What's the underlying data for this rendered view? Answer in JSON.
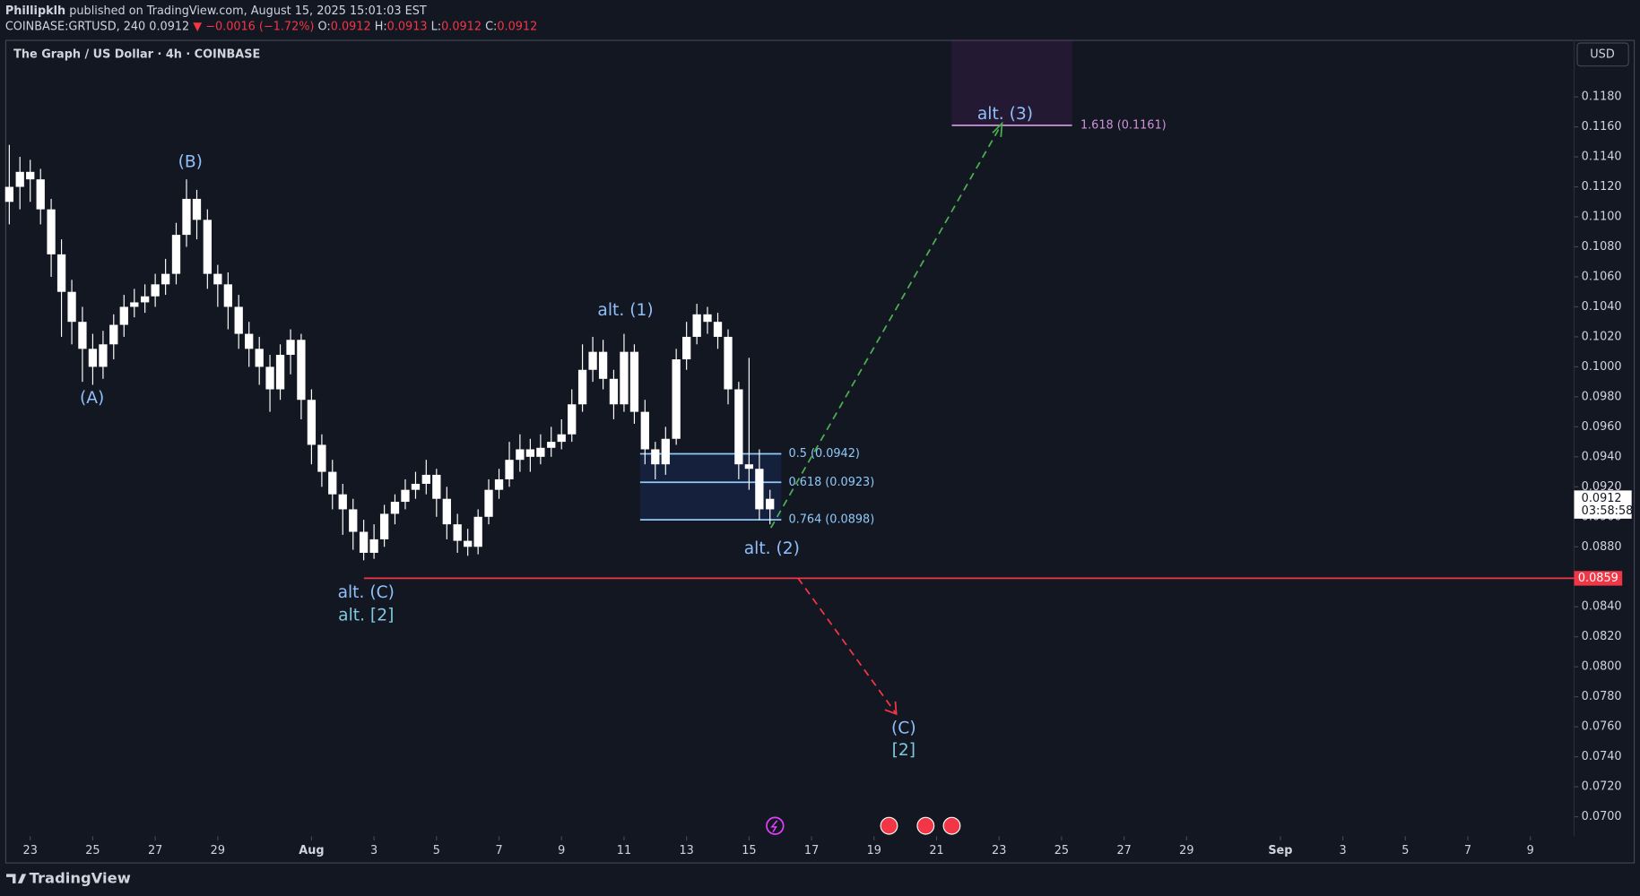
{
  "header": {
    "author": "Phillipklh",
    "published": "published on TradingView.com, August 15, 2025 15:01:03 EST",
    "symbol": "COINBASE:GRTUSD, 240",
    "last": "0.0912",
    "change": "▼ −0.0016 (−1.72%)",
    "ohlc": [
      {
        "key": "O:",
        "value": "0.0912"
      },
      {
        "key": "H:",
        "value": "0.0913"
      },
      {
        "key": "L:",
        "value": "0.0912"
      },
      {
        "key": "C:",
        "value": "0.0912"
      }
    ]
  },
  "chart_data": {
    "type": "candlestick",
    "title": "The Graph / US Dollar · 4h · COINBASE",
    "currency": "USD",
    "color": "#ffffff",
    "x": [
      0.33,
      0.67,
      1,
      1.33,
      1.67,
      2,
      2.33,
      2.67,
      3,
      3.33,
      3.67,
      4,
      4.33,
      4.67,
      5,
      5.33,
      5.67,
      6,
      6.33,
      6.67,
      7,
      7.33,
      7.67,
      8,
      8.33,
      8.67,
      9,
      9.33,
      9.67,
      10,
      10.33,
      10.67,
      11,
      11.33,
      11.67,
      12,
      12.33,
      12.67,
      13,
      13.33,
      13.67,
      14,
      14.33,
      14.67,
      15,
      15.33,
      15.67,
      16,
      16.33,
      16.67,
      17,
      17.33,
      17.67,
      18,
      18.33,
      18.67,
      19,
      19.33,
      19.67,
      20,
      20.33,
      20.67,
      21,
      21.33,
      21.67,
      22,
      22.33,
      22.67,
      23,
      23.33,
      23.67,
      24,
      24.33,
      24.67
    ],
    "open": [
      0.111,
      0.112,
      0.113,
      0.1125,
      0.1105,
      0.1075,
      0.105,
      0.103,
      0.1012,
      0.1,
      0.1015,
      0.1028,
      0.104,
      0.1043,
      0.1047,
      0.1055,
      0.1062,
      0.1088,
      0.1112,
      0.1098,
      0.1062,
      0.1055,
      0.104,
      0.1022,
      0.1012,
      0.1,
      0.0985,
      0.1008,
      0.1018,
      0.0978,
      0.0948,
      0.093,
      0.0915,
      0.0905,
      0.089,
      0.0876,
      0.0885,
      0.0902,
      0.091,
      0.0918,
      0.0922,
      0.0928,
      0.0912,
      0.0895,
      0.0884,
      0.088,
      0.09,
      0.0918,
      0.0925,
      0.0938,
      0.0945,
      0.094,
      0.0946,
      0.095,
      0.0955,
      0.0975,
      0.0998,
      0.101,
      0.0992,
      0.0975,
      0.101,
      0.097,
      0.0945,
      0.0935,
      0.0952,
      0.1005,
      0.102,
      0.1035,
      0.103,
      0.102,
      0.0985,
      0.0935,
      0.0932,
      0.0905
    ],
    "high": [
      0.1148,
      0.114,
      0.1138,
      0.1132,
      0.1112,
      0.1085,
      0.1058,
      0.104,
      0.1022,
      0.1024,
      0.1035,
      0.1048,
      0.1052,
      0.1055,
      0.1062,
      0.1072,
      0.1096,
      0.1125,
      0.1118,
      0.1105,
      0.1068,
      0.1063,
      0.1048,
      0.103,
      0.102,
      0.1008,
      0.1015,
      0.1025,
      0.1022,
      0.0985,
      0.0955,
      0.0938,
      0.0922,
      0.0912,
      0.0898,
      0.0895,
      0.0908,
      0.0915,
      0.0925,
      0.093,
      0.0938,
      0.0932,
      0.092,
      0.0902,
      0.0892,
      0.0905,
      0.0925,
      0.0932,
      0.095,
      0.0955,
      0.0952,
      0.0955,
      0.096,
      0.0965,
      0.0985,
      0.1015,
      0.102,
      0.1018,
      0.0998,
      0.1022,
      0.1015,
      0.0978,
      0.095,
      0.096,
      0.1012,
      0.103,
      0.1042,
      0.104,
      0.1036,
      0.1025,
      0.099,
      0.1006,
      0.0945,
      0.0918
    ],
    "low": [
      0.1095,
      0.1105,
      0.111,
      0.1095,
      0.106,
      0.102,
      0.1015,
      0.099,
      0.0988,
      0.0992,
      0.1005,
      0.102,
      0.1033,
      0.1036,
      0.104,
      0.1048,
      0.1055,
      0.108,
      0.1085,
      0.1052,
      0.104,
      0.1025,
      0.1012,
      0.1,
      0.0988,
      0.097,
      0.0978,
      0.0995,
      0.0965,
      0.0935,
      0.092,
      0.0905,
      0.0888,
      0.0878,
      0.0871,
      0.0872,
      0.088,
      0.0895,
      0.0905,
      0.0912,
      0.0915,
      0.09,
      0.0885,
      0.0876,
      0.0874,
      0.0875,
      0.0895,
      0.0912,
      0.092,
      0.093,
      0.093,
      0.0935,
      0.094,
      0.0945,
      0.095,
      0.097,
      0.099,
      0.0985,
      0.0965,
      0.097,
      0.0962,
      0.0935,
      0.0925,
      0.0928,
      0.0948,
      0.0998,
      0.1015,
      0.1022,
      0.1012,
      0.0975,
      0.0925,
      0.0918,
      0.0898,
      0.0895
    ],
    "close": [
      0.112,
      0.113,
      0.1125,
      0.1105,
      0.1075,
      0.105,
      0.103,
      0.1012,
      0.1,
      0.1015,
      0.1028,
      0.104,
      0.1043,
      0.1047,
      0.1055,
      0.1062,
      0.1088,
      0.1112,
      0.1098,
      0.1062,
      0.1055,
      0.104,
      0.1022,
      0.1012,
      0.1,
      0.0985,
      0.1008,
      0.1018,
      0.0978,
      0.0948,
      0.093,
      0.0915,
      0.0905,
      0.089,
      0.0876,
      0.0885,
      0.0902,
      0.091,
      0.0918,
      0.0922,
      0.0928,
      0.0912,
      0.0895,
      0.0884,
      0.088,
      0.09,
      0.0918,
      0.0925,
      0.0938,
      0.0945,
      0.094,
      0.0946,
      0.095,
      0.0955,
      0.0975,
      0.0998,
      0.101,
      0.0992,
      0.0975,
      0.101,
      0.097,
      0.0945,
      0.0935,
      0.0952,
      0.1005,
      0.102,
      0.1035,
      0.103,
      0.102,
      0.0985,
      0.0935,
      0.0932,
      0.0905,
      0.0912
    ],
    "countdown": "03:58:58",
    "xlim": [
      0.2,
      50.4
    ],
    "xticks": [
      {
        "value": 1,
        "label": "23"
      },
      {
        "value": 3,
        "label": "25"
      },
      {
        "value": 5,
        "label": "27"
      },
      {
        "value": 7,
        "label": "29"
      },
      {
        "value": 10,
        "label": "Aug"
      },
      {
        "value": 12,
        "label": "3"
      },
      {
        "value": 14,
        "label": "5"
      },
      {
        "value": 16,
        "label": "7"
      },
      {
        "value": 18,
        "label": "9"
      },
      {
        "value": 20,
        "label": "11"
      },
      {
        "value": 22,
        "label": "13"
      },
      {
        "value": 24,
        "label": "15"
      },
      {
        "value": 26,
        "label": "17"
      },
      {
        "value": 28,
        "label": "19"
      },
      {
        "value": 30,
        "label": "21"
      },
      {
        "value": 32,
        "label": "23"
      },
      {
        "value": 34,
        "label": "25"
      },
      {
        "value": 36,
        "label": "27"
      },
      {
        "value": 38,
        "label": "29"
      },
      {
        "value": 41,
        "label": "Sep"
      },
      {
        "value": 43,
        "label": "3"
      },
      {
        "value": 45,
        "label": "5"
      },
      {
        "value": 47,
        "label": "7"
      },
      {
        "value": 49,
        "label": "9"
      }
    ],
    "ylim": [
      0.0687,
      0.1218
    ],
    "yticks": [
      {
        "value": 0.07,
        "label": "0.0700"
      },
      {
        "value": 0.072,
        "label": "0.0720"
      },
      {
        "value": 0.074,
        "label": "0.0740"
      },
      {
        "value": 0.076,
        "label": "0.0760"
      },
      {
        "value": 0.078,
        "label": "0.0780"
      },
      {
        "value": 0.08,
        "label": "0.0800"
      },
      {
        "value": 0.082,
        "label": "0.0820"
      },
      {
        "value": 0.084,
        "label": "0.0840"
      },
      {
        "value": 0.086,
        "label": "0.0860"
      },
      {
        "value": 0.088,
        "label": "0.0880"
      },
      {
        "value": 0.09,
        "label": "0.0900"
      },
      {
        "value": 0.092,
        "label": "0.0920"
      },
      {
        "value": 0.094,
        "label": "0.0940"
      },
      {
        "value": 0.096,
        "label": "0.0960"
      },
      {
        "value": 0.098,
        "label": "0.0980"
      },
      {
        "value": 0.1,
        "label": "0.1000"
      },
      {
        "value": 0.102,
        "label": "0.1020"
      },
      {
        "value": 0.104,
        "label": "0.1040"
      },
      {
        "value": 0.106,
        "label": "0.1060"
      },
      {
        "value": 0.108,
        "label": "0.1080"
      },
      {
        "value": 0.11,
        "label": "0.1100"
      },
      {
        "value": 0.112,
        "label": "0.1120"
      },
      {
        "value": 0.114,
        "label": "0.1140"
      },
      {
        "value": 0.116,
        "label": "0.1160"
      },
      {
        "value": 0.118,
        "label": "0.1180"
      }
    ],
    "hline": {
      "value": 0.0859,
      "color": "#f23645"
    },
    "fib_levels": [
      {
        "value": 0.0942,
        "label": "0.5 (0.0942)"
      },
      {
        "value": 0.0923,
        "label": "0.618 (0.0923)"
      },
      {
        "value": 0.0898,
        "label": "0.764 (0.0898)"
      },
      {
        "value": 0.1161,
        "label": "1.618 (0.1161)"
      }
    ],
    "annotations": [
      "(A)",
      "(B)",
      "alt. (C)",
      "alt. [2]",
      "alt. (1)",
      "alt. (2)",
      "alt. (3)",
      "(C)",
      "[2]"
    ]
  },
  "footer": "TradingView"
}
